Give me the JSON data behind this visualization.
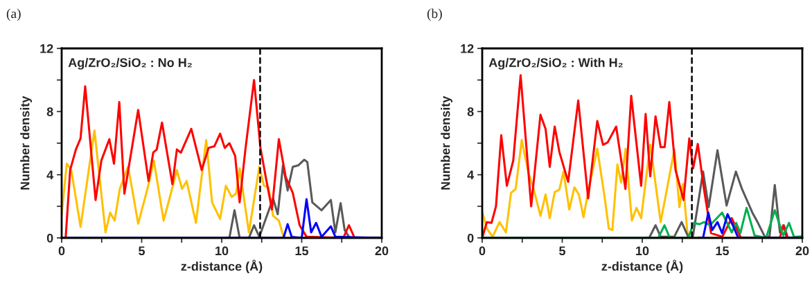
{
  "chart_data": [
    {
      "type": "line",
      "title": "(a)",
      "xlabel": "z-distance (Å)",
      "ylabel": "Number density",
      "annotations": [
        "Ag/ZrO₂/SiO₂ : No H₂"
      ],
      "xlim": [
        0,
        20
      ],
      "xticks": [
        0,
        {
          "value": 2.5,
          "label": null
        },
        5,
        {
          "value": 7.5,
          "label": null
        },
        10,
        {
          "value": 12.5,
          "label": null
        },
        15,
        {
          "value": 17.5,
          "label": null
        },
        20
      ],
      "ylim": [
        0,
        12
      ],
      "yticks": [
        0,
        {
          "value": 2,
          "label": null
        },
        4,
        {
          "value": 6,
          "label": null
        },
        8,
        {
          "value": 10,
          "label": null
        },
        12
      ],
      "grid": false,
      "legend": false,
      "line_style": "solid",
      "marker": "none",
      "ref_lines": [
        {
          "axis": "x",
          "value": 12.4,
          "label": null,
          "color": "#000000",
          "line_style": "dashed"
        }
      ],
      "series": [
        {
          "color": "#ffc000",
          "x": [
            0,
            0.32,
            0.6,
            1.18,
            2.05,
            2.74,
            3.03,
            3.31,
            3.63,
            4.14,
            4.35,
            4.78,
            5.36,
            5.76,
            6.37,
            6.87,
            7.2,
            7.52,
            7.81,
            8.39,
            9.03,
            9.4,
            9.9,
            10.26,
            10.62,
            10.9,
            11.12,
            11.7,
            12.35,
            12.64,
            12.92,
            13.21,
            13.57,
            13.86,
            14.0,
            20
          ],
          "values": [
            1.5,
            4.7,
            4.3,
            0.7,
            6.8,
            0.35,
            1.6,
            1.1,
            3.1,
            4.5,
            3.4,
            0.9,
            3.1,
            4.9,
            1.1,
            3.0,
            4.3,
            3.1,
            3.6,
            0.95,
            6.2,
            2.25,
            1.2,
            3.3,
            2.6,
            2.8,
            4.4,
            0.35,
            4.5,
            3.3,
            3.2,
            1.4,
            1.1,
            0.07,
            0,
            0
          ]
        },
        {
          "color": "#595959",
          "x": [
            10.3,
            10.48,
            10.8,
            11.12,
            11.7,
            12.02,
            12.35,
            13.21,
            13.5,
            13.83,
            14.12,
            14.44,
            14.8,
            15.16,
            15.35,
            15.66,
            16.24,
            16.82,
            17.1,
            17.43,
            17.68,
            18.0,
            20
          ],
          "values": [
            0,
            0,
            1.75,
            0,
            0,
            0.8,
            0.07,
            2.5,
            1.5,
            4.6,
            3.0,
            4.5,
            4.6,
            4.95,
            4.8,
            2.25,
            1.75,
            2.4,
            0.35,
            2.2,
            0.5,
            0,
            0
          ]
        },
        {
          "color": "#ff0000",
          "x": [
            0.25,
            0.53,
            0.89,
            1.18,
            1.47,
            2.12,
            2.48,
            2.98,
            3.27,
            3.6,
            3.92,
            4.78,
            5.43,
            5.72,
            5.94,
            6.27,
            6.92,
            7.2,
            7.45,
            8.1,
            8.75,
            9.18,
            9.54,
            9.9,
            10.19,
            10.48,
            10.84,
            11.12,
            11.48,
            12.02,
            12.42,
            12.78,
            13.14,
            13.57,
            14.0,
            14.44,
            14.87,
            15.3,
            17.6,
            17.95,
            18.3,
            20
          ],
          "values": [
            0,
            4.3,
            5.6,
            6.3,
            9.6,
            2.4,
            4.9,
            6.25,
            4.7,
            8.6,
            2.8,
            8.1,
            3.6,
            5.4,
            5.6,
            7.3,
            3.4,
            5.6,
            5.4,
            6.9,
            4.3,
            5.7,
            5.8,
            6.6,
            5.7,
            6.0,
            5.2,
            2.25,
            5.6,
            10.0,
            5.7,
            3.7,
            1.8,
            6.25,
            3.85,
            2.85,
            0.8,
            0.07,
            0,
            0.8,
            0,
            0
          ]
        },
        {
          "color": "#0000ff",
          "x": [
            0,
            13.86,
            14.12,
            14.37,
            15.0,
            15.3,
            15.59,
            15.9,
            16.24,
            16.82,
            17.1,
            20
          ],
          "values": [
            0,
            0,
            0.87,
            0.07,
            0,
            2.45,
            0.35,
            0.95,
            0.07,
            0.73,
            0.07,
            0
          ]
        }
      ]
    },
    {
      "type": "line",
      "title": "(b)",
      "xlabel": "z-distance (Å)",
      "ylabel": "Number density",
      "annotations": [
        "Ag/ZrO₂/SiO₂ : With H₂"
      ],
      "xlim": [
        0,
        20
      ],
      "xticks": [
        0,
        {
          "value": 2.5,
          "label": null
        },
        5,
        {
          "value": 7.5,
          "label": null
        },
        10,
        {
          "value": 12.5,
          "label": null
        },
        15,
        {
          "value": 17.5,
          "label": null
        },
        20
      ],
      "ylim": [
        0,
        12
      ],
      "yticks": [
        0,
        {
          "value": 2,
          "label": null
        },
        4,
        {
          "value": 6,
          "label": null
        },
        8,
        {
          "value": 10,
          "label": null
        },
        12
      ],
      "grid": false,
      "legend": false,
      "line_style": "solid",
      "marker": "none",
      "ref_lines": [
        {
          "axis": "x",
          "value": 13.1,
          "label": null,
          "color": "#000000",
          "line_style": "dashed"
        }
      ],
      "series": [
        {
          "color": "#ffc000",
          "x": [
            0,
            0.29,
            0.65,
            1.08,
            1.48,
            1.8,
            2.09,
            2.47,
            2.88,
            3.24,
            3.64,
            3.96,
            4.22,
            4.53,
            4.82,
            5.08,
            5.44,
            5.76,
            6.04,
            6.33,
            6.66,
            7.19,
            7.63,
            7.91,
            8.13,
            8.45,
            8.68,
            8.96,
            9.35,
            9.64,
            9.93,
            10.5,
            11.15,
            12.01,
            12.32,
            12.55,
            12.85,
            20
          ],
          "values": [
            1.65,
            0.6,
            0.07,
            1.0,
            0.35,
            2.85,
            3.1,
            6.2,
            4.15,
            3.0,
            1.4,
            2.75,
            1.25,
            2.9,
            3.05,
            4.2,
            1.8,
            3.2,
            2.75,
            1.3,
            3.15,
            5.65,
            2.7,
            0.6,
            0.5,
            4.65,
            3.5,
            5.65,
            1.1,
            1.9,
            1.25,
            5.9,
            1.0,
            5.6,
            1.95,
            3.4,
            0,
            0
          ]
        },
        {
          "color": "#595959",
          "x": [
            10.2,
            10.43,
            10.83,
            11.15,
            12.0,
            12.46,
            12.87,
            13.15,
            13.8,
            14.15,
            14.7,
            15.27,
            15.85,
            16.23,
            16.88,
            17.23,
            17.66,
            17.95,
            18.28,
            18.6,
            18.85,
            19.1,
            20
          ],
          "values": [
            0,
            0,
            0.8,
            0.07,
            0.07,
            1.0,
            0.07,
            0,
            4.2,
            1.95,
            5.55,
            2.05,
            4.2,
            3.1,
            1.6,
            0.95,
            0.07,
            0.07,
            3.35,
            0.35,
            0.8,
            0,
            0
          ]
        },
        {
          "color": "#ff0000",
          "x": [
            0,
            0.29,
            0.58,
            0.86,
            1.19,
            1.54,
            1.94,
            2.4,
            3.06,
            3.64,
            3.96,
            4.22,
            4.53,
            4.82,
            5.37,
            6.0,
            6.62,
            7.19,
            7.55,
            7.84,
            8.37,
            8.95,
            9.31,
            9.93,
            10.21,
            10.5,
            10.83,
            11.15,
            11.4,
            11.69,
            12.08,
            12.58,
            12.94,
            13.18,
            13.47,
            13.87,
            14.3,
            15.0,
            15.59,
            16.16,
            18.6,
            18.81,
            19.03,
            20
          ],
          "values": [
            0,
            1.0,
            0.95,
            2.0,
            6.5,
            3.3,
            4.9,
            10.3,
            2.0,
            7.8,
            6.9,
            4.5,
            7.05,
            5.45,
            3.55,
            8.7,
            2.5,
            7.4,
            5.9,
            6.05,
            7.05,
            3.1,
            9.0,
            3.3,
            7.85,
            3.9,
            7.7,
            5.75,
            5.75,
            8.6,
            4.3,
            2.4,
            6.3,
            4.4,
            5.95,
            3.0,
            0.3,
            0.07,
            1.25,
            0,
            0,
            0.8,
            0,
            0
          ]
        },
        {
          "color": "#00b050",
          "x": [
            0,
            11.0,
            11.39,
            11.72,
            12.87,
            13.22,
            13.58,
            13.87,
            14.23,
            14.99,
            15.59,
            15.87,
            16.13,
            16.52,
            17.02,
            17.74,
            18.28,
            18.81,
            19.17,
            19.48,
            20
          ],
          "values": [
            0,
            0,
            0.8,
            0,
            0,
            0.95,
            0.87,
            1.0,
            0.8,
            1.6,
            0.35,
            0.95,
            0.3,
            1.9,
            0.15,
            0,
            1.75,
            0.15,
            0.95,
            0.07,
            0.1
          ]
        },
        {
          "color": "#0000ff",
          "x": [
            13.5,
            13.8,
            14.13,
            14.37,
            14.7,
            14.99,
            15.33,
            15.66,
            16.0,
            20
          ],
          "values": [
            0,
            0,
            1.6,
            0.5,
            1.0,
            0.3,
            1.5,
            0.8,
            0,
            0
          ]
        }
      ]
    }
  ]
}
